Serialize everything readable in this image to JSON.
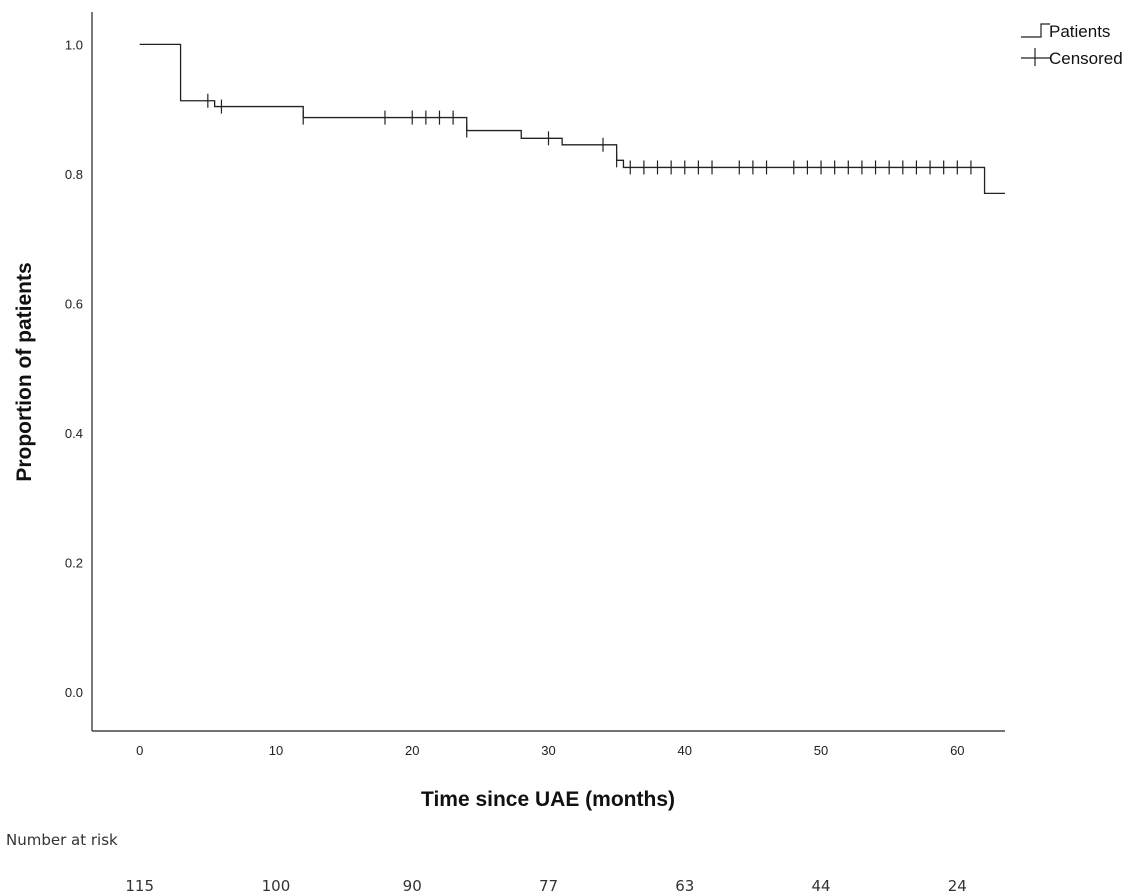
{
  "chart_data": {
    "type": "line",
    "subtype": "kaplan-meier step curve",
    "xlabel": "Time since UAE (months)",
    "ylabel": "Proportion of patients",
    "xlim": [
      -3.5,
      63.5
    ],
    "ylim": [
      -0.06,
      1.05
    ],
    "x_ticks": [
      0,
      10,
      20,
      30,
      40,
      50,
      60
    ],
    "y_ticks": [
      0.0,
      0.2,
      0.4,
      0.6,
      0.8,
      1.0
    ],
    "x_tick_labels": [
      "0",
      "10",
      "20",
      "30",
      "40",
      "50",
      "60"
    ],
    "y_tick_labels": [
      "0.0",
      "0.2",
      "0.4",
      "0.6",
      "0.8",
      "1.0"
    ],
    "grid": false,
    "legend_position": "top-right",
    "legend": [
      {
        "label": "Patients",
        "symbol": "step-line"
      },
      {
        "label": "Censored",
        "symbol": "cross"
      }
    ],
    "series": [
      {
        "name": "Patients",
        "color": "#222222",
        "steps": [
          [
            0,
            1.0
          ],
          [
            3,
            0.913
          ],
          [
            5.5,
            0.904
          ],
          [
            12,
            0.887
          ],
          [
            24,
            0.867
          ],
          [
            28,
            0.855
          ],
          [
            31,
            0.845
          ],
          [
            35,
            0.821
          ],
          [
            35.5,
            0.81
          ],
          [
            62,
            0.77
          ],
          [
            63.5,
            0.77
          ]
        ],
        "censored": [
          5,
          6,
          12,
          18,
          20,
          21,
          22,
          23,
          24,
          30,
          34,
          35,
          36,
          37,
          38,
          39,
          40,
          41,
          42,
          44,
          45,
          46,
          48,
          49,
          50,
          51,
          52,
          53,
          54,
          55,
          56,
          57,
          58,
          59,
          60,
          61
        ]
      }
    ],
    "risk_table": {
      "label": "Number at risk",
      "times": [
        0,
        10,
        20,
        30,
        40,
        50,
        60
      ],
      "counts": [
        "115",
        "100",
        "90",
        "77",
        "63",
        "44",
        "24"
      ]
    }
  }
}
